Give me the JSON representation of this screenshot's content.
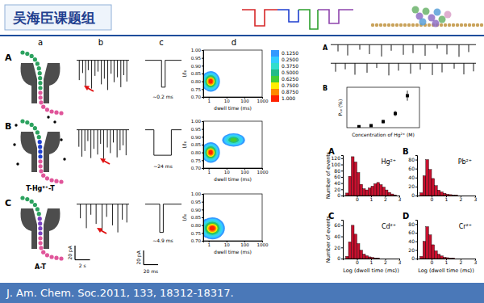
{
  "header": {
    "title": "吴海臣课题组"
  },
  "citation": "J. Am. Chem. Soc.2011, 133, 18312-18317.",
  "figure": {
    "column_labels": [
      "a",
      "b",
      "c",
      "d"
    ],
    "rows": [
      {
        "label": "A",
        "trace": {
          "xlim": [
            0,
            7
          ],
          "ylim": [
            -45,
            3
          ],
          "event_times": [
            0.35,
            0.8,
            1.2,
            1.55,
            2.0,
            2.45,
            2.85,
            3.3,
            3.7,
            4.15,
            4.6,
            5.0,
            5.45,
            5.9,
            6.3,
            6.7
          ],
          "event_currents": [
            -28,
            -18,
            -36,
            -14,
            -40,
            -22,
            -16,
            -34,
            -26,
            -42,
            -19,
            -31,
            -24,
            -38,
            -21,
            -30
          ]
        },
        "event": {
          "xlim": [
            0,
            2
          ],
          "ylim": [
            -45,
            3
          ],
          "start": 0.9,
          "duration": 0.2,
          "current": -38,
          "duration_label": "~0.2 ms"
        },
        "contour": {
          "peaks": [
            {
              "dwell_time": 1.3,
              "i_ratio": 0.8,
              "height": 1.0,
              "spread_decades": 0.22,
              "spread_i": 0.028
            }
          ]
        }
      },
      {
        "label": "B",
        "pore_label": "T-Hg²⁺-T",
        "trace": {
          "xlim": [
            0,
            7
          ],
          "ylim": [
            -45,
            3
          ],
          "event_times": [
            0.3,
            0.7,
            1.1,
            1.5,
            1.9,
            2.3,
            2.8,
            3.2,
            3.6,
            4.1,
            4.5,
            4.9,
            5.4,
            5.8,
            6.2,
            6.6
          ],
          "event_currents": [
            -24,
            -38,
            -30,
            -16,
            -40,
            -27,
            -35,
            -20,
            -41,
            -25,
            -33,
            -18,
            -39,
            -29,
            -22,
            -36
          ]
        },
        "event": {
          "xlim": [
            0,
            50
          ],
          "ylim": [
            -45,
            3
          ],
          "start": 12,
          "duration": 24,
          "current": -36,
          "duration_label": "~24 ms"
        },
        "contour": {
          "peaks": [
            {
              "dwell_time": 1.3,
              "i_ratio": 0.8,
              "height": 1.0,
              "spread_decades": 0.22,
              "spread_i": 0.028
            },
            {
              "dwell_time": 25,
              "i_ratio": 0.88,
              "height": 0.6,
              "spread_decades": 0.3,
              "spread_i": 0.02
            }
          ]
        }
      },
      {
        "label": "C",
        "pore_label": "A-T",
        "trace": {
          "xlim": [
            0,
            7
          ],
          "ylim": [
            -45,
            3
          ],
          "event_times": [
            0.5,
            1.3,
            1.9,
            2.6,
            3.4,
            4.0,
            4.8,
            5.5,
            6.1,
            6.7
          ],
          "event_currents": [
            -20,
            -34,
            -15,
            -28,
            -37,
            -18,
            -30,
            -40,
            -22,
            -26
          ]
        },
        "event": {
          "xlim": [
            0,
            50
          ],
          "ylim": [
            -45,
            3
          ],
          "start": 20,
          "duration": 4.9,
          "current": -40,
          "duration_label": "~4.9 ms"
        },
        "contour": {
          "peaks": [
            {
              "dwell_time": 1.6,
              "i_ratio": 0.78,
              "height": 1.0,
              "spread_decades": 0.3,
              "spread_i": 0.03
            }
          ]
        }
      }
    ],
    "trace_scale": {
      "current": {
        "value": 20,
        "label": "20 pA"
      },
      "time": {
        "value": 2,
        "label": "2 s"
      }
    },
    "event_scale": {
      "current": {
        "value": 20,
        "label": "20 pA"
      },
      "time": {
        "value": 20,
        "label": "20 ms"
      }
    },
    "contour_axes": {
      "xlabel": "dwell time (ms)",
      "ylabel": "I/I₀",
      "log": "x",
      "xlim": [
        0.5,
        1000
      ],
      "xticks": [
        1,
        10,
        100,
        1000
      ],
      "ylim": [
        0.7,
        1.0
      ],
      "yticks": [
        {
          "value": 0.7,
          "label": "0.70"
        },
        {
          "value": 0.75,
          "label": "0.75"
        },
        {
          "value": 0.8,
          "label": "0.80"
        },
        {
          "value": 0.85,
          "label": "0.85"
        },
        {
          "value": 0.9,
          "label": "0.90"
        },
        {
          "value": 0.95,
          "label": "0.95"
        },
        {
          "value": 1.0,
          "label": "1.00"
        }
      ]
    },
    "colorbar": {
      "ticks": [
        {
          "value": 0.125,
          "label": "0.1250"
        },
        {
          "value": 0.25,
          "label": "0.2500"
        },
        {
          "value": 0.375,
          "label": "0.3750"
        },
        {
          "value": 0.5,
          "label": "0.5000"
        },
        {
          "value": 0.625,
          "label": "0.6250"
        },
        {
          "value": 0.75,
          "label": "0.7500"
        },
        {
          "value": 0.875,
          "label": "0.8750"
        },
        {
          "value": 1.0,
          "label": "1.000"
        }
      ],
      "colors": [
        "#3399ff",
        "#33ccff",
        "#33ddcc",
        "#22bb88",
        "#44cc33",
        "#ffee00",
        "#ff8800",
        "#ff2200"
      ]
    }
  },
  "inset": {
    "annotations": [
      "A"
    ],
    "traces": [
      {
        "xlim": [
          0,
          60
        ],
        "ylim": [
          -40,
          3
        ],
        "event_times": [
          3,
          7,
          12,
          16,
          21,
          25,
          30,
          34,
          39,
          44,
          48,
          53,
          57
        ],
        "event_currents": [
          -20,
          -32,
          -15,
          -28,
          -35,
          -18,
          -30,
          -25,
          -33,
          -12,
          -29,
          -36,
          -22
        ]
      },
      {
        "xlim": [
          0,
          60
        ],
        "ylim": [
          -40,
          3
        ],
        "event_times": [
          2,
          6,
          10,
          15,
          19,
          24,
          28,
          33,
          37,
          42,
          46,
          51,
          55,
          59
        ],
        "event_currents": [
          -25,
          -18,
          -34,
          -28,
          -14,
          -36,
          -22,
          -31,
          -19,
          -35,
          -27,
          -16,
          -33,
          -24
        ]
      }
    ]
  },
  "chart_data": [
    {
      "type": "histogram",
      "title": "Hg²⁺",
      "annotations": [
        "A"
      ],
      "ylabel": "Number of events",
      "bins": [
        -0.8,
        -0.6,
        -0.4,
        -0.2,
        0,
        0.2,
        0.4,
        0.6,
        0.8,
        1,
        1.2,
        1.4,
        1.6,
        1.8,
        2,
        2.2,
        2.4,
        2.6,
        2.8
      ],
      "counts": [
        8,
        62,
        125,
        108,
        74,
        36,
        22,
        18,
        24,
        30,
        38,
        42,
        35,
        27,
        18,
        10,
        5,
        2
      ],
      "color": "#c8102e",
      "xlim": [
        -1,
        3
      ],
      "xticks": [
        0,
        1,
        2,
        3
      ],
      "ylim": [
        0,
        130
      ],
      "yticks": [
        0,
        20,
        40,
        60,
        80,
        100,
        120
      ]
    },
    {
      "type": "histogram",
      "title": "Pb²⁺",
      "annotations": [
        "B"
      ],
      "bins": [
        -0.8,
        -0.6,
        -0.4,
        -0.2,
        0,
        0.2,
        0.4,
        0.6,
        0.8,
        1,
        1.2,
        1.4,
        1.6,
        1.8,
        2,
        2.2,
        2.4,
        2.6,
        2.8
      ],
      "counts": [
        6,
        44,
        80,
        58,
        38,
        22,
        12,
        8,
        5,
        3,
        2,
        1,
        1,
        0,
        0,
        0,
        0,
        0
      ],
      "color": "#c8102e",
      "xlim": [
        -1,
        3
      ],
      "xticks": [
        0,
        1,
        2,
        3
      ],
      "ylim": [
        0,
        90
      ],
      "yticks": [
        0,
        20,
        40,
        60,
        80
      ]
    },
    {
      "type": "histogram",
      "title": "Cd²⁺",
      "annotations": [
        "C"
      ],
      "ylabel": "Number of events",
      "xlabel": "Log (dwell time (ms))",
      "bins": [
        -0.8,
        -0.6,
        -0.4,
        -0.2,
        0,
        0.2,
        0.4,
        0.6,
        0.8,
        1,
        1.2,
        1.4,
        1.6,
        1.8,
        2,
        2.2,
        2.4,
        2.6,
        2.8
      ],
      "counts": [
        4,
        30,
        60,
        44,
        27,
        15,
        8,
        5,
        3,
        2,
        1,
        1,
        0,
        0,
        0,
        0,
        0,
        0
      ],
      "color": "#c8102e",
      "xlim": [
        -1,
        3
      ],
      "xticks": [
        0,
        1,
        2,
        3
      ],
      "ylim": [
        0,
        70
      ],
      "yticks": [
        0,
        20,
        40,
        60
      ]
    },
    {
      "type": "histogram",
      "title": "Cr²⁺",
      "annotations": [
        "D"
      ],
      "xlabel": "Log (dwell time (ms))",
      "bins": [
        -0.8,
        -0.6,
        -0.4,
        -0.2,
        0,
        0.2,
        0.4,
        0.6,
        0.8,
        1,
        1.2,
        1.4,
        1.6,
        1.8,
        2,
        2.2,
        2.4,
        2.6,
        2.8
      ],
      "counts": [
        5,
        40,
        74,
        55,
        32,
        18,
        10,
        6,
        3,
        2,
        1,
        1,
        0,
        0,
        0,
        0,
        0,
        0
      ],
      "color": "#c8102e",
      "xlim": [
        -1,
        3
      ],
      "xticks": [
        0,
        1,
        2,
        3
      ],
      "ylim": [
        0,
        90
      ],
      "yticks": [
        0,
        20,
        40,
        60,
        80
      ]
    },
    {
      "type": "scatter",
      "annotations": [
        "B"
      ],
      "xlabel": "Concentration of Hg²⁺ (M)",
      "ylabel": "Pₒₙ (%)",
      "x": [
        1e-09,
        1e-08,
        1e-07,
        1e-06,
        1e-05
      ],
      "values": [
        0.3,
        0.6,
        1.8,
        4.2,
        9.5
      ],
      "errors": [
        0.2,
        0.3,
        0.5,
        0.8,
        1.5
      ],
      "xlim": [
        1e-10,
        0.0001
      ],
      "ylim": [
        0,
        12
      ],
      "log": "x",
      "tick_labels": false,
      "color": "#000000",
      "marker": "square"
    }
  ]
}
